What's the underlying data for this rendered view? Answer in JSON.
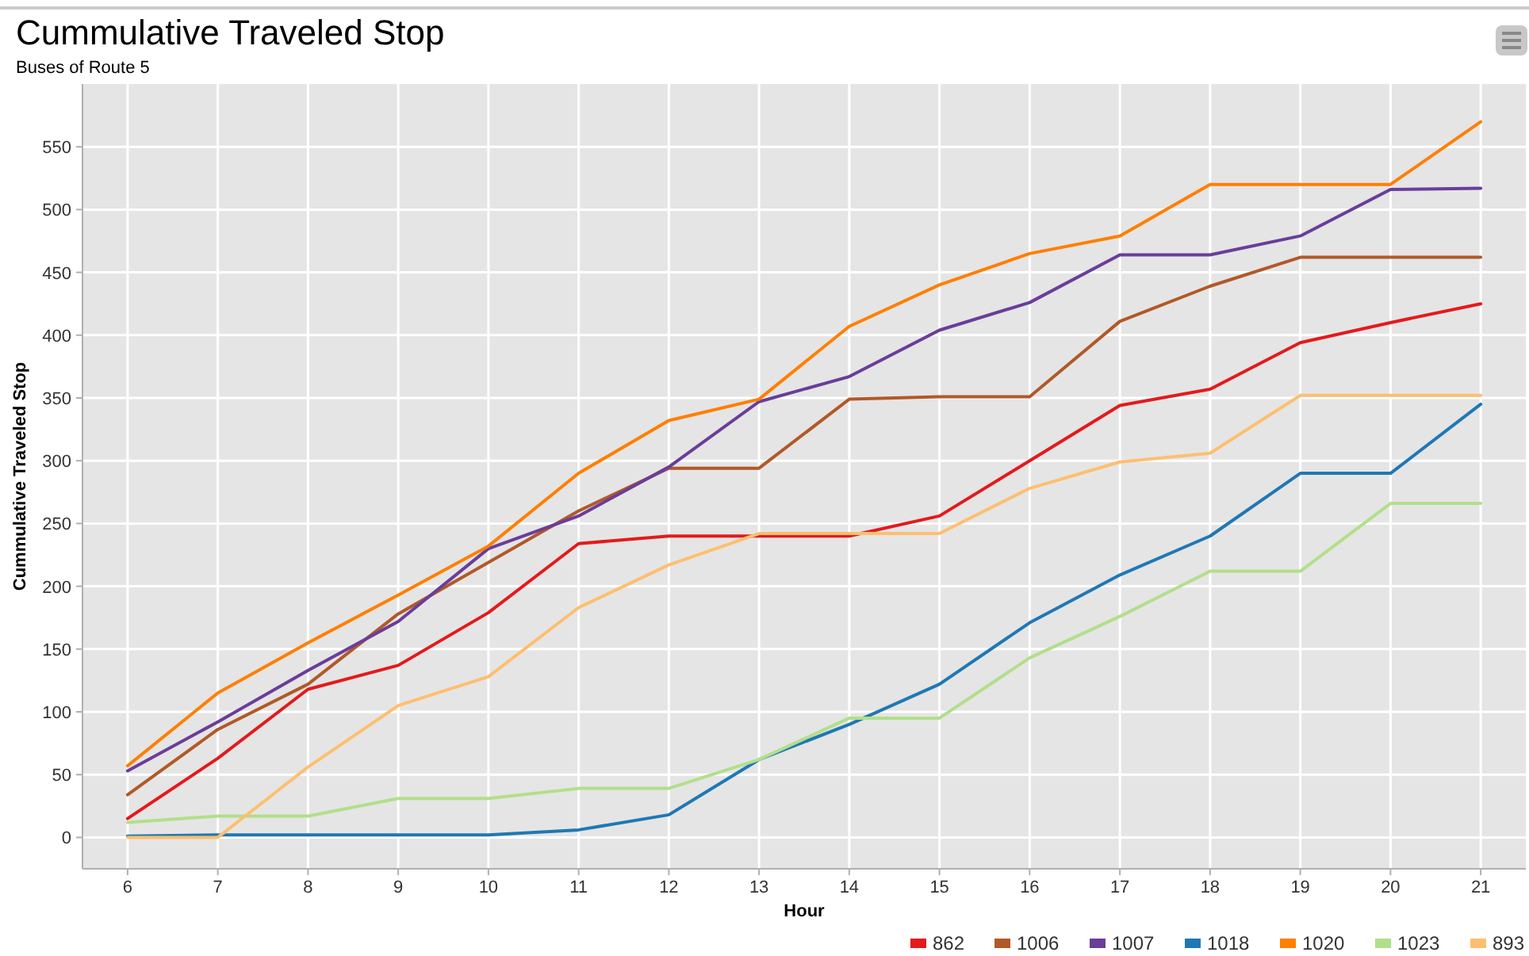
{
  "chart_data": {
    "type": "line",
    "title": "Cummulative Traveled Stop",
    "subtitle": "Buses of Route 5",
    "xlabel": "Hour",
    "ylabel": "Cummulative Traveled Stop",
    "categories": [
      "6",
      "7",
      "8",
      "9",
      "10",
      "11",
      "12",
      "13",
      "14",
      "15",
      "16",
      "17",
      "18",
      "19",
      "20",
      "21"
    ],
    "ylim": [
      -25,
      600
    ],
    "yticks": [
      0,
      50,
      100,
      150,
      200,
      250,
      300,
      350,
      400,
      450,
      500,
      550
    ],
    "grid": true,
    "legend": "bottom right",
    "marker": "none",
    "line_style": "solid",
    "series": [
      {
        "name": "862",
        "color": "#e41a1c",
        "values": [
          15,
          63,
          118,
          137,
          179,
          234,
          240,
          240,
          240,
          256,
          300,
          344,
          357,
          394,
          410,
          425
        ]
      },
      {
        "name": "1006",
        "color": "#b15928",
        "values": [
          34,
          86,
          122,
          178,
          219,
          260,
          294,
          294,
          349,
          351,
          351,
          411,
          439,
          462,
          462,
          462
        ]
      },
      {
        "name": "1007",
        "color": "#6a3d9a",
        "values": [
          53,
          92,
          133,
          172,
          230,
          256,
          295,
          347,
          367,
          404,
          426,
          464,
          464,
          479,
          516,
          517
        ]
      },
      {
        "name": "1018",
        "color": "#1f78b4",
        "values": [
          1,
          2,
          2,
          2,
          2,
          6,
          18,
          62,
          90,
          122,
          171,
          209,
          240,
          290,
          290,
          345
        ]
      },
      {
        "name": "1020",
        "color": "#ff7f00",
        "values": [
          57,
          115,
          155,
          193,
          232,
          290,
          332,
          349,
          407,
          440,
          465,
          479,
          520,
          520,
          520,
          570
        ]
      },
      {
        "name": "1023",
        "color": "#b2df8a",
        "values": [
          12,
          17,
          17,
          31,
          31,
          39,
          39,
          62,
          95,
          95,
          143,
          176,
          212,
          212,
          266,
          266
        ]
      },
      {
        "name": "893",
        "color": "#fdbf6f",
        "values": [
          0,
          0,
          56,
          105,
          128,
          183,
          217,
          242,
          242,
          242,
          278,
          299,
          306,
          352,
          352,
          352
        ]
      }
    ]
  }
}
